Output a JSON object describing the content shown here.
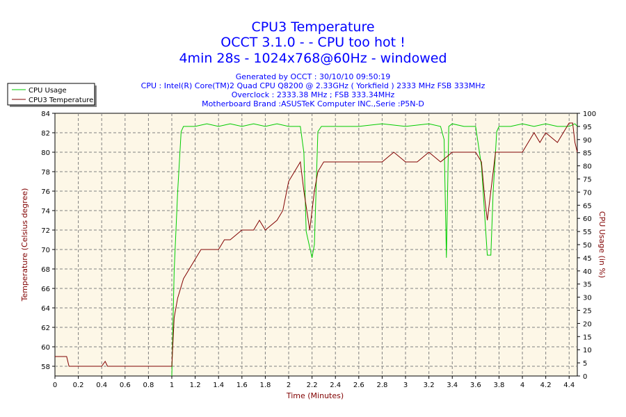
{
  "chart_data": {
    "type": "line",
    "title": "CPU3 Temperature",
    "subtitle_lines": [
      "OCCT 3.1.0 -  - CPU too hot !",
      "4min 28s - 1024x768@60Hz - windowed"
    ],
    "info_lines": [
      "Generated by OCCT : 30/10/10 09:50:19",
      "CPU : Intel(R) Core(TM)2 Quad CPU Q8200 @ 2.33GHz ( Yorkfield ) 2333 MHz FSB 333MHz",
      "Overclock : 2333.38 MHz ; FSB 333.34MHz",
      "Motherboard Brand :ASUSTeK Computer INC.,Serie :P5N-D"
    ],
    "xlabel": "Time (Minutes)",
    "ylabel_left": "Temperature (Celsius degree)",
    "ylabel_right": "CPU Usage (in %)",
    "xlim": [
      0,
      4.47
    ],
    "ylim_left": [
      57,
      84
    ],
    "ylim_right": [
      0,
      100
    ],
    "x_ticks": [
      "0",
      "0.2",
      "0.4",
      "0.6",
      "0.8",
      "1",
      "1.2",
      "1.4",
      "1.6",
      "1.8",
      "2",
      "2.2",
      "2.4",
      "2.6",
      "2.8",
      "3",
      "3.2",
      "3.4",
      "3.6",
      "3.8",
      "4",
      "4.2",
      "4.4"
    ],
    "y_left_ticks": [
      "58",
      "60",
      "62",
      "64",
      "66",
      "68",
      "70",
      "72",
      "74",
      "76",
      "78",
      "80",
      "82",
      "84"
    ],
    "y_right_ticks": [
      "0",
      "5",
      "10",
      "15",
      "20",
      "25",
      "30",
      "35",
      "40",
      "45",
      "50",
      "55",
      "60",
      "65",
      "70",
      "75",
      "80",
      "85",
      "90",
      "95",
      "100"
    ],
    "grid": true,
    "legend_position": "top-left",
    "background_color": "#fdf7e7",
    "series": [
      {
        "name": "CPU Usage",
        "axis": "right",
        "color": "#00cc00",
        "points": [
          [
            1.0,
            0
          ],
          [
            1.02,
            40
          ],
          [
            1.05,
            70
          ],
          [
            1.08,
            93
          ],
          [
            1.1,
            95
          ],
          [
            1.2,
            95
          ],
          [
            1.3,
            96
          ],
          [
            1.4,
            95
          ],
          [
            1.5,
            96
          ],
          [
            1.6,
            95
          ],
          [
            1.7,
            96
          ],
          [
            1.8,
            95
          ],
          [
            1.9,
            96
          ],
          [
            2.0,
            95
          ],
          [
            2.1,
            95
          ],
          [
            2.13,
            85
          ],
          [
            2.15,
            55
          ],
          [
            2.2,
            45
          ],
          [
            2.22,
            50
          ],
          [
            2.25,
            93
          ],
          [
            2.28,
            95
          ],
          [
            2.4,
            95
          ],
          [
            2.6,
            95
          ],
          [
            2.8,
            96
          ],
          [
            3.0,
            95
          ],
          [
            3.2,
            96
          ],
          [
            3.3,
            95
          ],
          [
            3.33,
            90
          ],
          [
            3.35,
            45
          ],
          [
            3.37,
            95
          ],
          [
            3.4,
            96
          ],
          [
            3.5,
            95
          ],
          [
            3.6,
            95
          ],
          [
            3.65,
            80
          ],
          [
            3.7,
            46
          ],
          [
            3.73,
            46
          ],
          [
            3.75,
            70
          ],
          [
            3.78,
            93
          ],
          [
            3.8,
            95
          ],
          [
            3.9,
            95
          ],
          [
            4.0,
            96
          ],
          [
            4.1,
            95
          ],
          [
            4.2,
            96
          ],
          [
            4.3,
            95
          ],
          [
            4.4,
            95
          ],
          [
            4.45,
            96
          ],
          [
            4.47,
            95
          ]
        ]
      },
      {
        "name": "CPU3 Temperature",
        "axis": "left",
        "color": "#800000",
        "points": [
          [
            0.0,
            59
          ],
          [
            0.1,
            59
          ],
          [
            0.12,
            58
          ],
          [
            0.4,
            58
          ],
          [
            0.43,
            58.5
          ],
          [
            0.45,
            58
          ],
          [
            1.0,
            58
          ],
          [
            1.02,
            63
          ],
          [
            1.05,
            65
          ],
          [
            1.1,
            67
          ],
          [
            1.15,
            68
          ],
          [
            1.2,
            69
          ],
          [
            1.25,
            70
          ],
          [
            1.4,
            70
          ],
          [
            1.45,
            71
          ],
          [
            1.5,
            71
          ],
          [
            1.6,
            72
          ],
          [
            1.7,
            72
          ],
          [
            1.75,
            73
          ],
          [
            1.8,
            72
          ],
          [
            1.9,
            73
          ],
          [
            1.95,
            74
          ],
          [
            2.0,
            77
          ],
          [
            2.05,
            78
          ],
          [
            2.1,
            79
          ],
          [
            2.13,
            76
          ],
          [
            2.18,
            72
          ],
          [
            2.22,
            76
          ],
          [
            2.25,
            78
          ],
          [
            2.3,
            79
          ],
          [
            2.5,
            79
          ],
          [
            2.6,
            79
          ],
          [
            2.8,
            79
          ],
          [
            2.9,
            80
          ],
          [
            3.0,
            79
          ],
          [
            3.1,
            79
          ],
          [
            3.2,
            80
          ],
          [
            3.3,
            79
          ],
          [
            3.4,
            80
          ],
          [
            3.5,
            80
          ],
          [
            3.6,
            80
          ],
          [
            3.65,
            79
          ],
          [
            3.68,
            75
          ],
          [
            3.7,
            73
          ],
          [
            3.73,
            76
          ],
          [
            3.77,
            80
          ],
          [
            3.9,
            80
          ],
          [
            4.0,
            80
          ],
          [
            4.05,
            81
          ],
          [
            4.1,
            82
          ],
          [
            4.15,
            81
          ],
          [
            4.2,
            82
          ],
          [
            4.3,
            81
          ],
          [
            4.35,
            82
          ],
          [
            4.4,
            83
          ],
          [
            4.43,
            83
          ],
          [
            4.45,
            81
          ],
          [
            4.47,
            80
          ]
        ]
      }
    ]
  }
}
